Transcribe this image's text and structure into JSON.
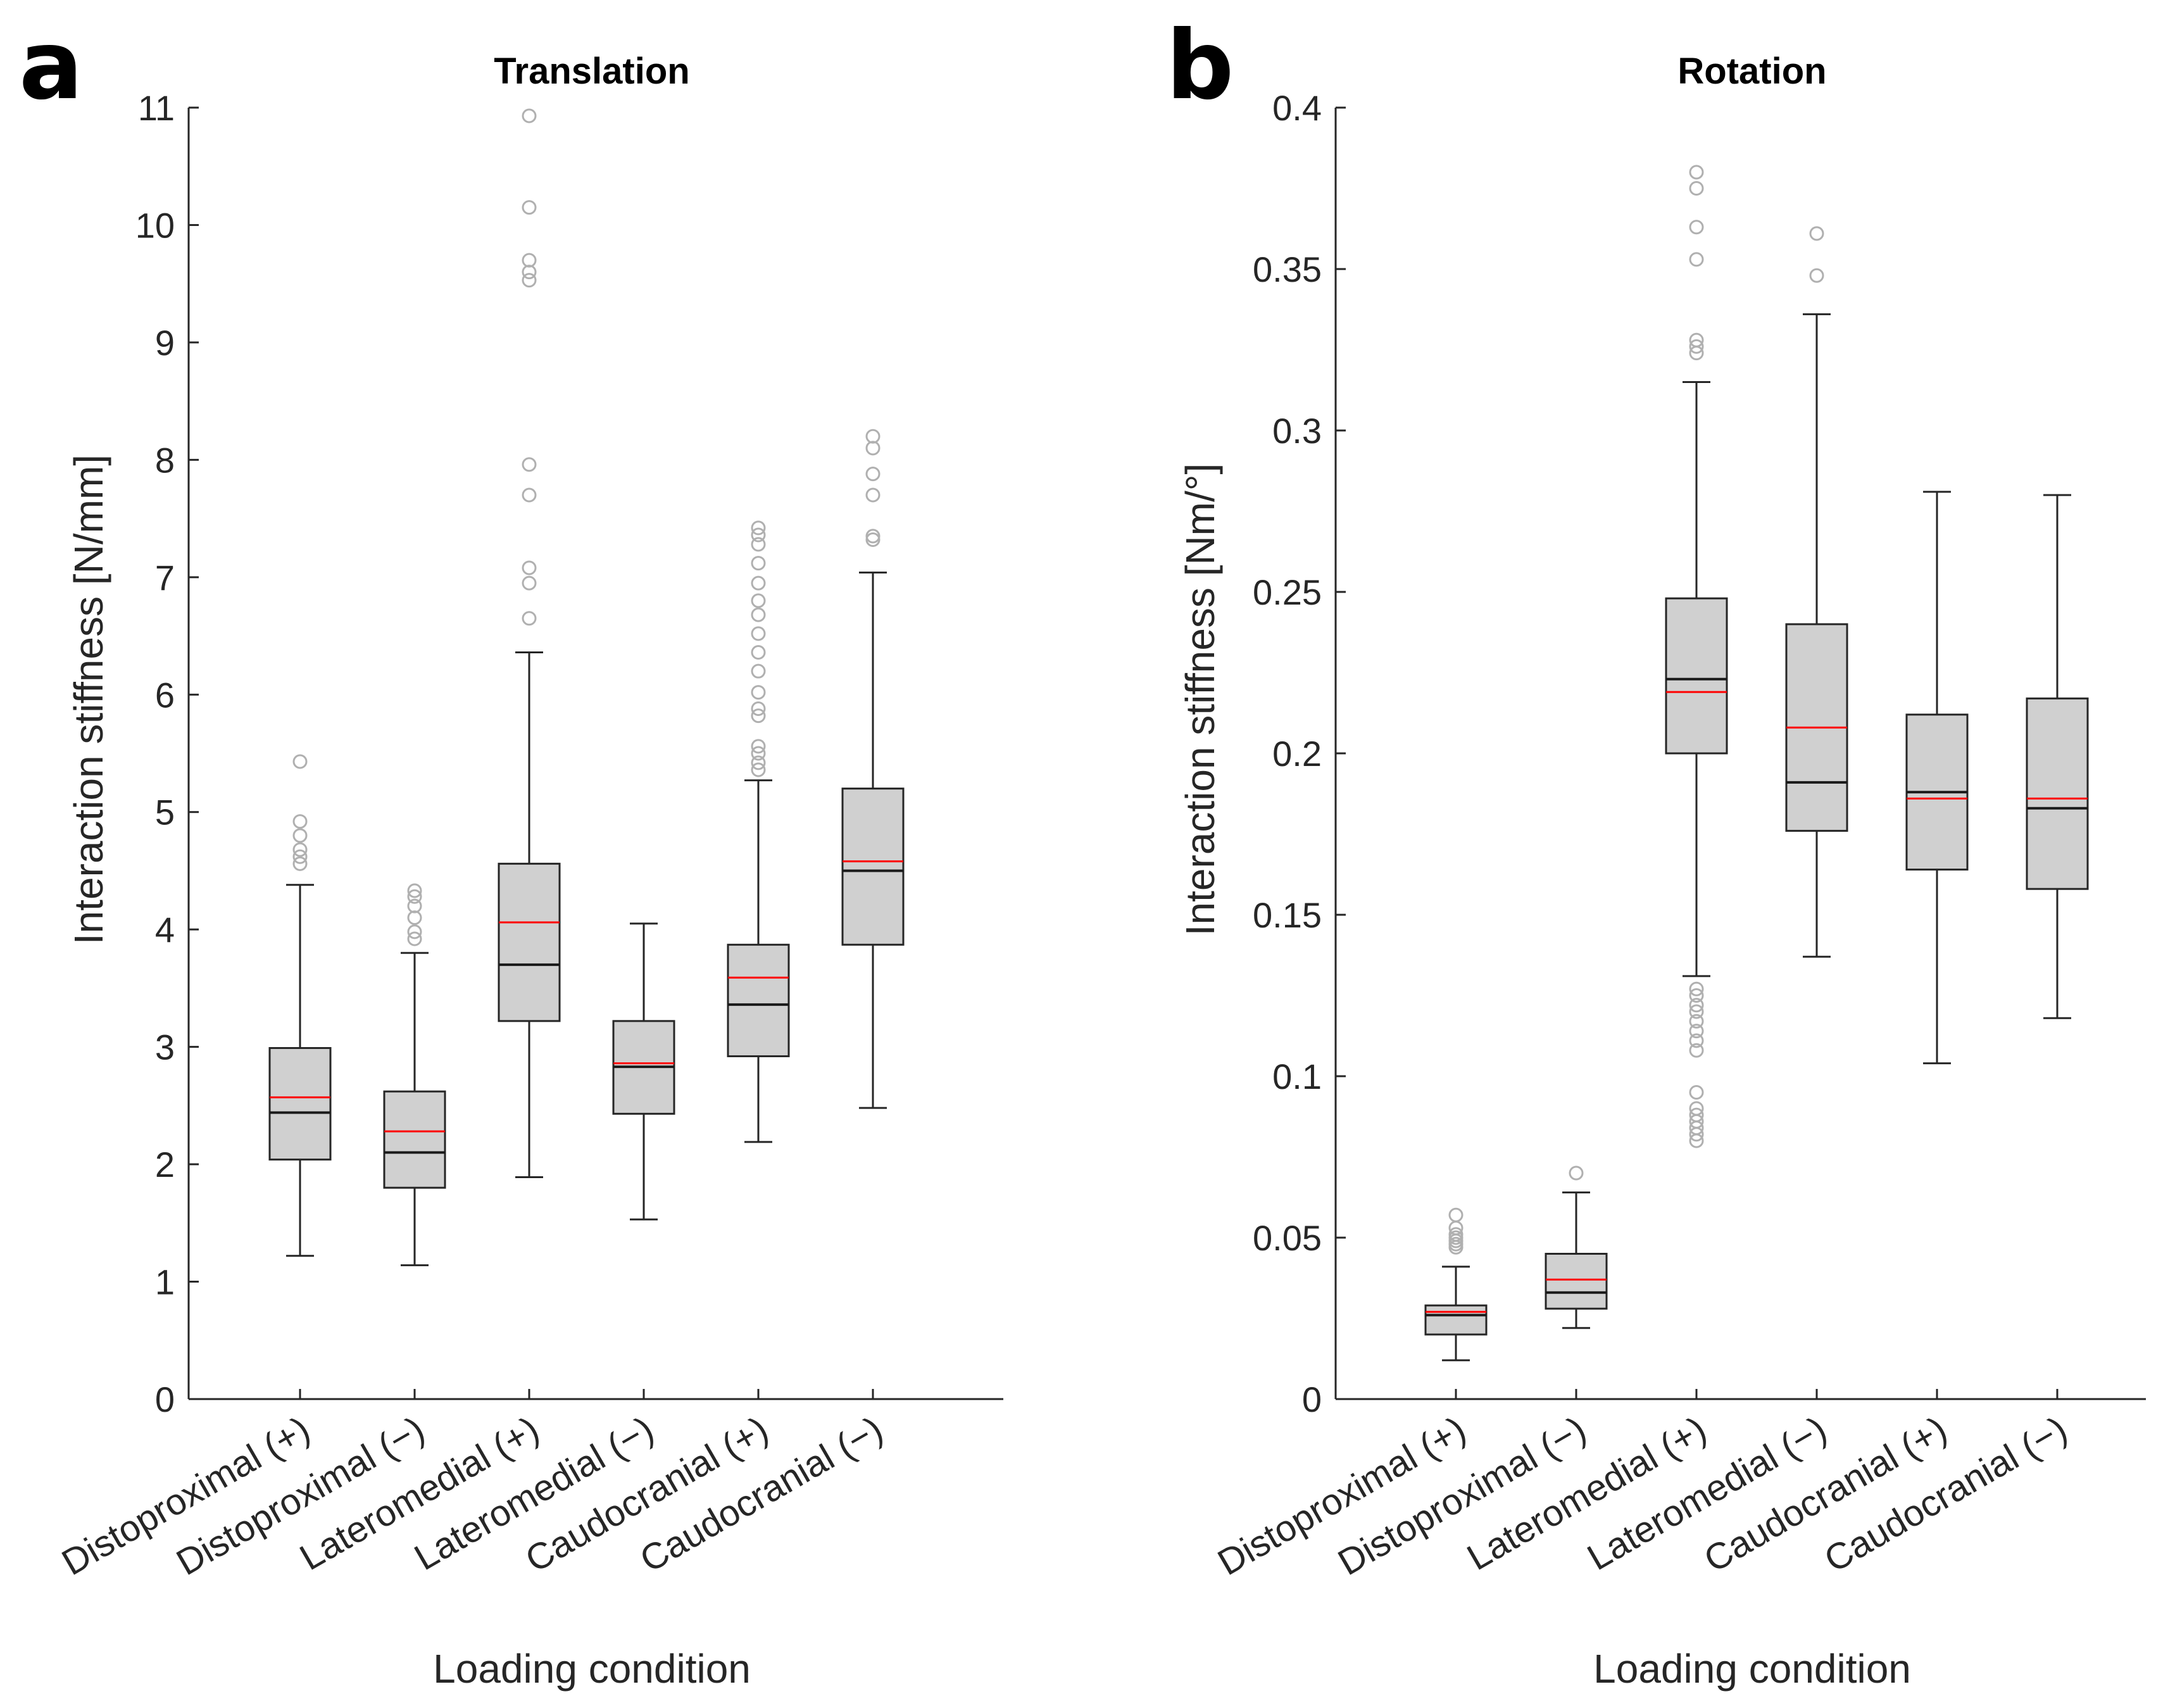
{
  "colors": {
    "box_fill": "#d0d0d0",
    "box_edge": "#262626",
    "median": "#1a1a1a",
    "mean": "#ff0000",
    "outlier": "#b0b0b0",
    "axis": "#262626"
  },
  "chart_data": [
    {
      "panel_label": "a",
      "type": "box",
      "title": "Translation",
      "xlabel": "Loading condition",
      "ylabel": "Interaction stiffness [N/mm]",
      "ylim": [
        0,
        11
      ],
      "yticks": [
        0,
        1,
        2,
        3,
        4,
        5,
        6,
        7,
        8,
        9,
        10,
        11
      ],
      "ytick_labels": [
        "0",
        "1",
        "2",
        "3",
        "4",
        "5",
        "6",
        "7",
        "8",
        "9",
        "10",
        "11"
      ],
      "categories": [
        "Distoproximal (+)",
        "Distoproximal (−)",
        "Lateromedial (+)",
        "Lateromedial (−)",
        "Caudocranial (+)",
        "Caudocranial (−)"
      ],
      "boxes": [
        {
          "whisker_low": 1.22,
          "q1": 2.04,
          "median": 2.44,
          "mean": 2.57,
          "q3": 2.99,
          "whisker_high": 4.38,
          "outliers": [
            4.56,
            4.62,
            4.68,
            4.8,
            4.92,
            5.43
          ]
        },
        {
          "whisker_low": 1.14,
          "q1": 1.8,
          "median": 2.1,
          "mean": 2.28,
          "q3": 2.62,
          "whisker_high": 3.8,
          "outliers": [
            3.92,
            3.98,
            4.1,
            4.2,
            4.28,
            4.33
          ]
        },
        {
          "whisker_low": 1.89,
          "q1": 3.22,
          "median": 3.7,
          "mean": 4.06,
          "q3": 4.56,
          "whisker_high": 6.36,
          "outliers": [
            6.65,
            6.95,
            7.08,
            7.7,
            7.96,
            9.53,
            9.6,
            9.7,
            10.15,
            10.93
          ]
        },
        {
          "whisker_low": 1.53,
          "q1": 2.43,
          "median": 2.83,
          "mean": 2.86,
          "q3": 3.22,
          "whisker_high": 4.05,
          "outliers": []
        },
        {
          "whisker_low": 2.19,
          "q1": 2.92,
          "median": 3.36,
          "mean": 3.59,
          "q3": 3.87,
          "whisker_high": 5.27,
          "outliers": [
            5.36,
            5.42,
            5.5,
            5.56,
            5.82,
            5.88,
            6.02,
            6.2,
            6.36,
            6.52,
            6.68,
            6.8,
            6.95,
            7.12,
            7.28,
            7.36,
            7.42
          ]
        },
        {
          "whisker_low": 2.48,
          "q1": 3.87,
          "median": 4.5,
          "mean": 4.58,
          "q3": 5.2,
          "whisker_high": 7.04,
          "outliers": [
            7.32,
            7.35,
            7.7,
            7.88,
            8.1,
            8.2
          ]
        }
      ]
    },
    {
      "panel_label": "b",
      "type": "box",
      "title": "Rotation",
      "xlabel": "Loading condition",
      "ylabel": "Interaction stiffness [Nm/°]",
      "ylim": [
        0,
        0.4
      ],
      "yticks": [
        0,
        0.05,
        0.1,
        0.15,
        0.2,
        0.25,
        0.3,
        0.35,
        0.4
      ],
      "ytick_labels": [
        "0",
        "0.05",
        "0.1",
        "0.15",
        "0.2",
        "0.25",
        "0.3",
        "0.35",
        "0.4"
      ],
      "categories": [
        "Distoproximal (+)",
        "Distoproximal (−)",
        "Lateromedial (+)",
        "Lateromedial (−)",
        "Caudocranial (+)",
        "Caudocranial (−)"
      ],
      "boxes": [
        {
          "whisker_low": 0.012,
          "q1": 0.02,
          "median": 0.026,
          "mean": 0.027,
          "q3": 0.029,
          "whisker_high": 0.041,
          "outliers": [
            0.047,
            0.048,
            0.049,
            0.05,
            0.051,
            0.053,
            0.057
          ]
        },
        {
          "whisker_low": 0.022,
          "q1": 0.028,
          "median": 0.033,
          "mean": 0.037,
          "q3": 0.045,
          "whisker_high": 0.064,
          "outliers": [
            0.07
          ]
        },
        {
          "whisker_low": 0.131,
          "q1": 0.2,
          "median": 0.223,
          "mean": 0.219,
          "q3": 0.248,
          "whisker_high": 0.315,
          "outliers": [
            0.08,
            0.082,
            0.084,
            0.086,
            0.088,
            0.09,
            0.095,
            0.108,
            0.111,
            0.114,
            0.117,
            0.12,
            0.122,
            0.125,
            0.127,
            0.324,
            0.326,
            0.328,
            0.353,
            0.363,
            0.375,
            0.38
          ]
        },
        {
          "whisker_low": 0.137,
          "q1": 0.176,
          "median": 0.191,
          "mean": 0.208,
          "q3": 0.24,
          "whisker_high": 0.336,
          "outliers": [
            0.348,
            0.361
          ]
        },
        {
          "whisker_low": 0.104,
          "q1": 0.164,
          "median": 0.188,
          "mean": 0.186,
          "q3": 0.212,
          "whisker_high": 0.281,
          "outliers": []
        },
        {
          "whisker_low": 0.118,
          "q1": 0.158,
          "median": 0.183,
          "mean": 0.186,
          "q3": 0.217,
          "whisker_high": 0.28,
          "outliers": []
        }
      ]
    }
  ]
}
